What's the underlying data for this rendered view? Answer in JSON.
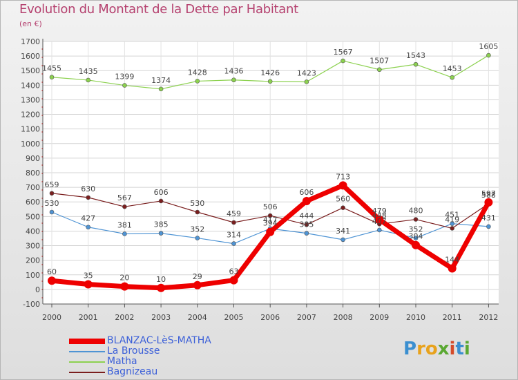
{
  "title": "Evolution du Montant de la Dette par Habitant",
  "subtitle": "(en €)",
  "brand": {
    "letters": [
      "P",
      "r",
      "o",
      "x",
      "i",
      "t",
      "i"
    ],
    "colors": [
      "#3b8fd0",
      "#e8a21c",
      "#e8a21c",
      "#5aa832",
      "#d44b2a",
      "#3b8fd0",
      "#5aa832"
    ]
  },
  "chart_data": {
    "type": "line",
    "x": [
      "2000",
      "2001",
      "2002",
      "2003",
      "2004",
      "2005",
      "2006",
      "2007",
      "2008",
      "2009",
      "2010",
      "2011",
      "2012"
    ],
    "ylim": [
      -100,
      1700
    ],
    "yticks": [
      -100,
      0,
      100,
      200,
      300,
      400,
      500,
      600,
      700,
      800,
      900,
      1000,
      1100,
      1200,
      1300,
      1400,
      1500,
      1600,
      1700
    ],
    "grid": true,
    "legend_position": "bottom-left",
    "series": [
      {
        "name": "BLANZAC-LèS-MATHA",
        "color": "#ee0000",
        "values": [
          60,
          35,
          20,
          10,
          29,
          63,
          394,
          606,
          713,
          479,
          304,
          144,
          597
        ]
      },
      {
        "name": "La Brousse",
        "color": "#4f94d4",
        "values": [
          530,
          427,
          381,
          385,
          352,
          314,
          417,
          385,
          341,
          407,
          352,
          451,
          431
        ]
      },
      {
        "name": "Matha",
        "color": "#8cd14f",
        "values": [
          1455,
          1435,
          1399,
          1374,
          1428,
          1436,
          1426,
          1423,
          1567,
          1507,
          1543,
          1453,
          1605
        ]
      },
      {
        "name": "Bagnizeau",
        "color": "#7a1e1e",
        "values": [
          659,
          630,
          567,
          606,
          530,
          459,
          506,
          444,
          560,
          448,
          480,
          419,
          588
        ]
      }
    ]
  }
}
